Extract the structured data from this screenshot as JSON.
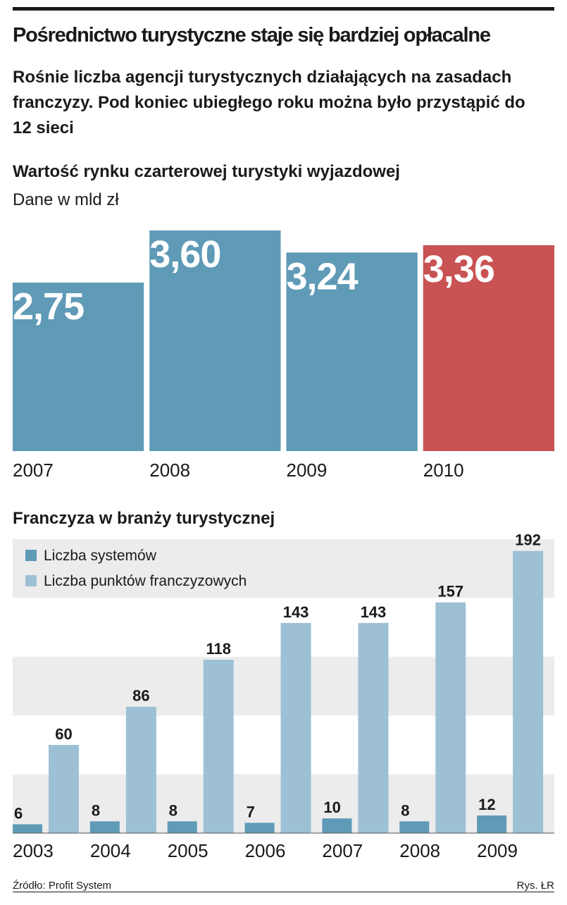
{
  "headline": "Pośrednictwo turystyczne staje się bardziej opłacalne",
  "subhead": "Rośnie liczba agencji turystycznych działających na zasadach franczyzy. Pod koniec ubiegłego roku można było przystąpić do 12 sieci",
  "source": "Źródło: Profit System",
  "credit": "Rys. ŁR",
  "colors": {
    "bar_blue": "#5f9ab7",
    "bar_red": "#c95253",
    "bar_light": "#9dc0d5",
    "band_grey": "#ececec",
    "text_white": "#ffffff"
  },
  "chart_data": [
    {
      "type": "bar",
      "title": "Wartość rynku czarterowej turystyki wyjazdowej",
      "subtitle": "Dane w mld zł",
      "categories": [
        "2007",
        "2008",
        "2009",
        "2010"
      ],
      "values": [
        2.75,
        3.6,
        3.24,
        3.36
      ],
      "value_labels": [
        "2,75",
        "3,60",
        "3,24",
        "3,36"
      ],
      "highlight_index": 3,
      "ylim": [
        0,
        3.6
      ],
      "grid": false
    },
    {
      "type": "bar",
      "title": "Franczyza w branży turystycznej",
      "categories": [
        "2003",
        "2004",
        "2005",
        "2006",
        "2007",
        "2008",
        "2009"
      ],
      "series": [
        {
          "name": "Liczba systemów",
          "values": [
            6,
            8,
            8,
            7,
            10,
            8,
            12
          ]
        },
        {
          "name": "Liczba punktów franczyzowych",
          "values": [
            60,
            86,
            118,
            143,
            143,
            157,
            192
          ]
        }
      ],
      "ylim": [
        0,
        200
      ],
      "legend": "top-left",
      "grid": "alternating bands"
    }
  ]
}
